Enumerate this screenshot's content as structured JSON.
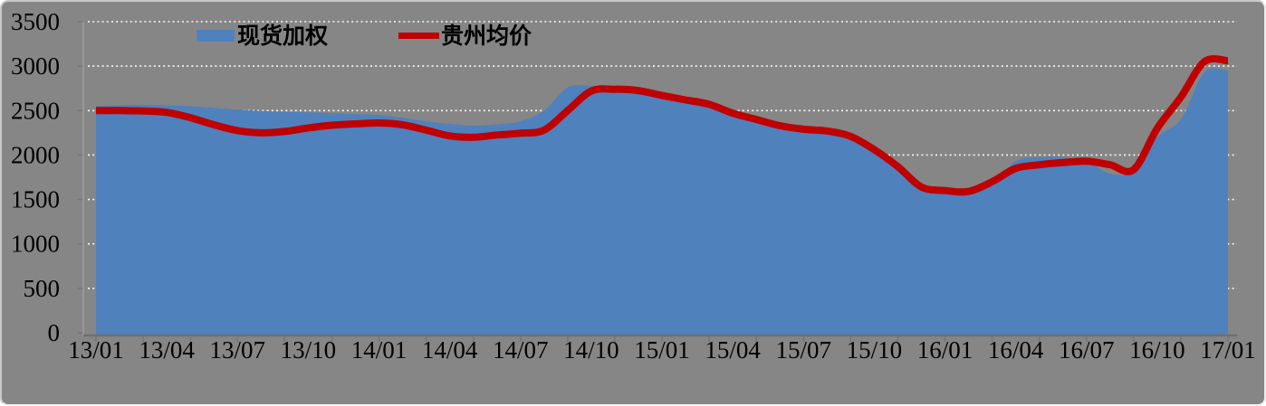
{
  "legend": {
    "items": [
      {
        "label": "现货加权",
        "swatch": "area",
        "color": "#4F81BD"
      },
      {
        "label": "贵州均价",
        "swatch": "line",
        "color": "#C00000"
      }
    ]
  },
  "colors": {
    "background": "#868686",
    "gridline": "#fafafa",
    "axis_left": "#9d9d9d",
    "axis_bottom": "#6f6f6f",
    "tick": "#757575",
    "text": "#000000",
    "area_fill": "#4F81BD",
    "line_stroke": "#C00000"
  },
  "chart_data": {
    "type": "area",
    "title": "",
    "xlabel": "",
    "ylabel": "",
    "x": [
      "13/01",
      "13/02",
      "13/03",
      "13/04",
      "13/05",
      "13/06",
      "13/07",
      "13/08",
      "13/09",
      "13/10",
      "13/11",
      "13/12",
      "14/01",
      "14/02",
      "14/03",
      "14/04",
      "14/05",
      "14/06",
      "14/07",
      "14/08",
      "14/09",
      "14/10",
      "14/11",
      "14/12",
      "15/01",
      "15/02",
      "15/03",
      "15/04",
      "15/05",
      "15/06",
      "15/07",
      "15/08",
      "15/09",
      "15/10",
      "15/11",
      "15/12",
      "16/01",
      "16/02",
      "16/03",
      "16/04",
      "16/05",
      "16/06",
      "16/07",
      "16/08",
      "16/09",
      "16/10",
      "16/11",
      "16/12",
      "17/01"
    ],
    "x_tick_interval": 3,
    "x_tick_labels_shown": [
      "13/01",
      "13/04",
      "13/07",
      "13/10",
      "14/01",
      "14/04",
      "14/07",
      "14/10",
      "15/01",
      "15/04",
      "15/07",
      "15/10",
      "16/01",
      "16/04",
      "16/07",
      "16/10",
      "17/01"
    ],
    "series": [
      {
        "name": "现货加权",
        "type": "area",
        "color": "#4F81BD",
        "smooth": true,
        "values": [
          2550,
          2560,
          2565,
          2560,
          2550,
          2530,
          2510,
          2495,
          2485,
          2480,
          2470,
          2460,
          2450,
          2420,
          2380,
          2350,
          2330,
          2345,
          2380,
          2500,
          2760,
          2780,
          2760,
          2730,
          2685,
          2635,
          2580,
          2485,
          2410,
          2340,
          2300,
          2280,
          2220,
          2070,
          1860,
          1640,
          1580,
          1580,
          1680,
          1930,
          1975,
          1975,
          1930,
          1790,
          1820,
          2200,
          2400,
          2930,
          2950
        ]
      },
      {
        "name": "贵州均价",
        "type": "line",
        "color": "#C00000",
        "smooth": true,
        "line_width": 8,
        "values": [
          2500,
          2500,
          2495,
          2480,
          2420,
          2340,
          2275,
          2250,
          2265,
          2305,
          2335,
          2350,
          2360,
          2340,
          2280,
          2215,
          2200,
          2225,
          2245,
          2280,
          2500,
          2720,
          2740,
          2725,
          2670,
          2620,
          2570,
          2470,
          2400,
          2330,
          2290,
          2270,
          2210,
          2060,
          1870,
          1640,
          1600,
          1590,
          1700,
          1850,
          1890,
          1915,
          1930,
          1890,
          1835,
          2300,
          2650,
          3050,
          3060
        ]
      }
    ],
    "ylim": [
      0,
      3500
    ],
    "yticks": [
      0,
      500,
      1000,
      1500,
      2000,
      2500,
      3000,
      3500
    ],
    "grid": "horizontal-dotted-white",
    "legend_position": "top-inside",
    "plot_bg": "#868686"
  }
}
